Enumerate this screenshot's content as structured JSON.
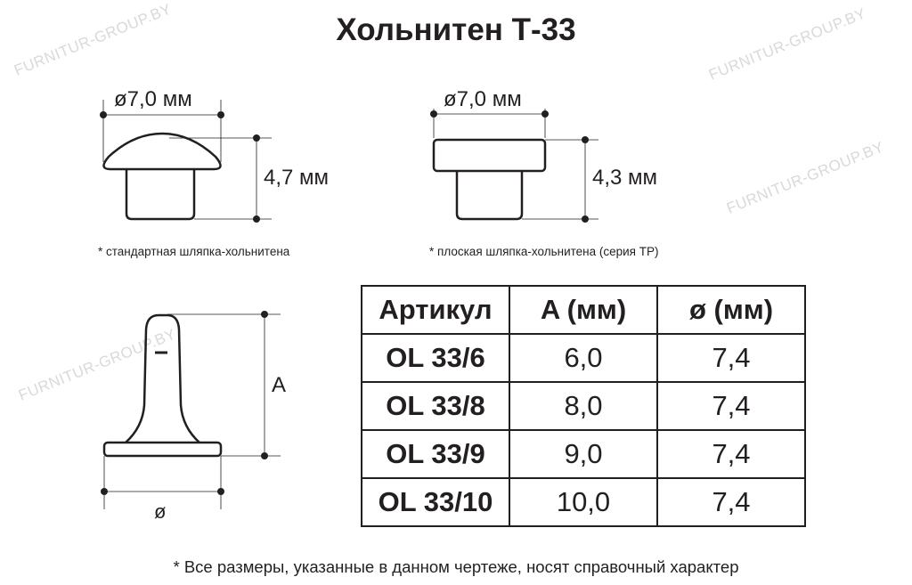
{
  "title": "Хольнитен Т-33",
  "watermark": "FURNITUR-GROUP.BY",
  "drawing_standard": {
    "diameter_label": "ø7,0 мм",
    "height_label": "4,7 мм",
    "caption": "* стандартная шляпка-хольнитена"
  },
  "drawing_flat": {
    "diameter_label": "ø7,0 мм",
    "height_label": "4,3 мм",
    "caption": "* плоская шляпка-хольнитена (серия ТР)"
  },
  "drawing_side": {
    "height_label": "A",
    "diameter_label": "ø"
  },
  "table": {
    "headers": [
      "Артикул",
      "A (мм)",
      "ø (мм)"
    ],
    "rows": [
      [
        "OL 33/6",
        "6,0",
        "7,4"
      ],
      [
        "OL 33/8",
        "8,0",
        "7,4"
      ],
      [
        "OL 33/9",
        "9,0",
        "7,4"
      ],
      [
        "OL 33/10",
        "10,0",
        "7,4"
      ]
    ]
  },
  "footer": "* Все размеры, указанные в данном чертеже, носят справочный характер"
}
